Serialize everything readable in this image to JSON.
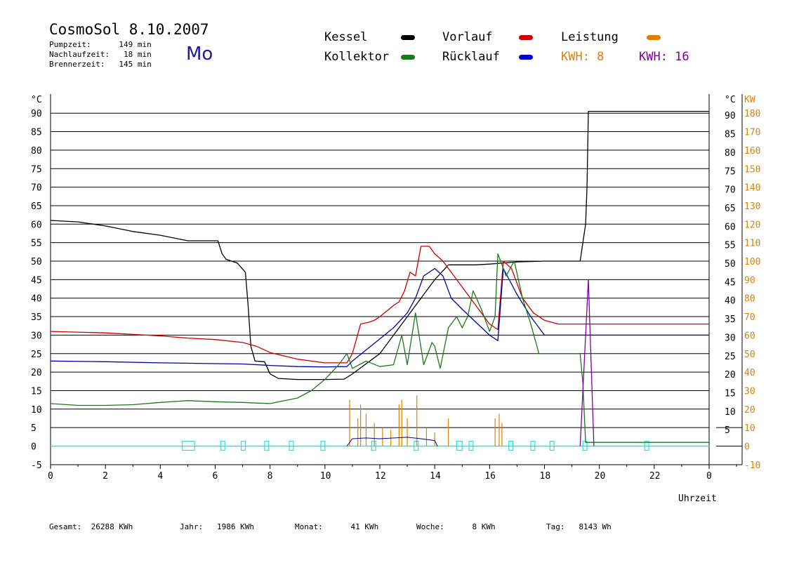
{
  "header": {
    "title": "CosmoSol 8.10.2007",
    "day": "Mo",
    "pumpzeit": "Pumpzeit:      149 min",
    "nachlaufzeit": "Nachlaufzeit:   18 min",
    "brennerzeit": "Brennerzeit:   145 min"
  },
  "legend": {
    "kessel": "Kessel",
    "kollektor": "Kollektor",
    "vorlauf": "Vorlauf",
    "ruecklauf": "Rücklauf",
    "leistung": "Leistung",
    "kwh1": "KWH: 8",
    "kwh2": "KWH: 16"
  },
  "footer": {
    "gesamt": "Gesamt:  26288 KWh",
    "jahr": "Jahr:   1986 KWh",
    "monat": "Monat:      41 KWh",
    "woche": "Woche:      8 KWh",
    "tag": "Tag:   8143 Wh"
  },
  "colors": {
    "kessel": "#000000",
    "kollektor": "#1a7a1a",
    "vorlauf": "#cc0000",
    "ruecklauf": "#0000aa",
    "leistung": "#e08000",
    "kwh16": "#8000a0",
    "pump": "#33dddd",
    "day": "#1a1aa6"
  },
  "chart_data": {
    "type": "line",
    "xlabel": "Uhrzeit",
    "x_ticks": [
      0,
      2,
      4,
      6,
      8,
      10,
      12,
      14,
      16,
      18,
      20,
      22
    ],
    "x_tick_labels": [
      "0",
      "2",
      "4",
      "6",
      "8",
      "10",
      "12",
      "14",
      "16",
      "18",
      "20",
      "22",
      "0"
    ],
    "xlim": [
      0,
      24
    ],
    "ylim": [
      -5,
      95
    ],
    "y_unit_left": "°C",
    "y_unit_right": "°C",
    "y_unit_power": "KW",
    "y_ticks_left": [
      90,
      85,
      80,
      75,
      70,
      65,
      60,
      55,
      50,
      45,
      40,
      35,
      30,
      25,
      20,
      15,
      10,
      5,
      0,
      -5
    ],
    "y_ticks_right": [
      90,
      85,
      80,
      75,
      70,
      65,
      60,
      55,
      50,
      45,
      40,
      35,
      30,
      25,
      20,
      15,
      10,
      5
    ],
    "y_ticks_power": [
      180,
      170,
      160,
      150,
      140,
      130,
      120,
      110,
      100,
      90,
      80,
      70,
      60,
      50,
      40,
      30,
      20,
      10,
      0,
      -10
    ],
    "grid": true,
    "series": [
      {
        "name": "Kessel",
        "color": "#000000",
        "points": [
          [
            0,
            61
          ],
          [
            1,
            60.6
          ],
          [
            2,
            59.5
          ],
          [
            3,
            58
          ],
          [
            4,
            57
          ],
          [
            5,
            55.5
          ],
          [
            6.1,
            55.5
          ],
          [
            6.25,
            52
          ],
          [
            6.4,
            50.5
          ],
          [
            6.8,
            49.5
          ],
          [
            7.1,
            47
          ],
          [
            7.2,
            38
          ],
          [
            7.3,
            27
          ],
          [
            7.45,
            23
          ],
          [
            7.8,
            22.8
          ],
          [
            8,
            19.5
          ],
          [
            8.3,
            18.3
          ],
          [
            9,
            18
          ],
          [
            10,
            18
          ],
          [
            10.7,
            18.1
          ],
          [
            11,
            19.5
          ],
          [
            12,
            25
          ],
          [
            13,
            35
          ],
          [
            14,
            45
          ],
          [
            14.5,
            49
          ],
          [
            15.5,
            49
          ],
          [
            16,
            49.2
          ],
          [
            17,
            49.8
          ],
          [
            18,
            50
          ],
          [
            19.3,
            50
          ],
          [
            19.5,
            60
          ],
          [
            19.55,
            70
          ],
          [
            19.6,
            90.5
          ],
          [
            20,
            90.5
          ],
          [
            24,
            90.5
          ]
        ]
      },
      {
        "name": "Vorlauf",
        "color": "#cc0000",
        "points": [
          [
            0,
            31
          ],
          [
            2,
            30.6
          ],
          [
            4,
            29.8
          ],
          [
            5,
            29.2
          ],
          [
            6,
            28.8
          ],
          [
            7,
            28
          ],
          [
            7.5,
            27
          ],
          [
            8,
            25.3
          ],
          [
            9,
            23.5
          ],
          [
            10,
            22.5
          ],
          [
            10.8,
            22.5
          ],
          [
            11,
            25
          ],
          [
            11.3,
            33
          ],
          [
            11.6,
            33.5
          ],
          [
            11.8,
            34
          ],
          [
            12,
            35
          ],
          [
            12.5,
            38
          ],
          [
            12.7,
            39
          ],
          [
            12.9,
            42
          ],
          [
            13.1,
            47
          ],
          [
            13.3,
            46
          ],
          [
            13.5,
            54
          ],
          [
            13.8,
            54
          ],
          [
            14,
            52
          ],
          [
            14.3,
            50
          ],
          [
            14.6,
            47
          ],
          [
            15,
            43
          ],
          [
            15.5,
            38
          ],
          [
            16,
            33
          ],
          [
            16.3,
            31.5
          ],
          [
            16.5,
            50
          ],
          [
            16.8,
            48
          ],
          [
            17.2,
            40
          ],
          [
            17.6,
            36
          ],
          [
            18,
            34
          ],
          [
            18.5,
            33
          ],
          [
            24,
            33
          ]
        ]
      },
      {
        "name": "Rücklauf",
        "color": "#0000aa",
        "points": [
          [
            0,
            23
          ],
          [
            2,
            22.8
          ],
          [
            4,
            22.5
          ],
          [
            6,
            22.3
          ],
          [
            7,
            22.2
          ],
          [
            8,
            21.8
          ],
          [
            9,
            21.5
          ],
          [
            10,
            21.4
          ],
          [
            10.8,
            21.5
          ],
          [
            11,
            23
          ],
          [
            11.5,
            26
          ],
          [
            12,
            29
          ],
          [
            12.5,
            32
          ],
          [
            13,
            36
          ],
          [
            13.3,
            40
          ],
          [
            13.6,
            46
          ],
          [
            14,
            48
          ],
          [
            14.3,
            46
          ],
          [
            14.6,
            40
          ],
          [
            15,
            37
          ],
          [
            15.5,
            33.5
          ],
          [
            16,
            30
          ],
          [
            16.3,
            28.5
          ],
          [
            16.5,
            48
          ],
          [
            17,
            41
          ],
          [
            17.5,
            35
          ],
          [
            18,
            30
          ],
          [
            24,
            30
          ]
        ]
      },
      {
        "name": "Kollektor",
        "color": "#1a7a1a",
        "points": [
          [
            0,
            11.5
          ],
          [
            1,
            11
          ],
          [
            2,
            11
          ],
          [
            3,
            11.2
          ],
          [
            4,
            11.8
          ],
          [
            5,
            12.3
          ],
          [
            6,
            12
          ],
          [
            7,
            11.8
          ],
          [
            8,
            11.5
          ],
          [
            9,
            13
          ],
          [
            9.5,
            15
          ],
          [
            10,
            18
          ],
          [
            10.5,
            22
          ],
          [
            10.8,
            25
          ],
          [
            11,
            21
          ],
          [
            11.5,
            23
          ],
          [
            12,
            21.5
          ],
          [
            12.5,
            22
          ],
          [
            12.8,
            30
          ],
          [
            13,
            22
          ],
          [
            13.3,
            36
          ],
          [
            13.6,
            22
          ],
          [
            13.9,
            28
          ],
          [
            14,
            27
          ],
          [
            14.2,
            21
          ],
          [
            14.5,
            32
          ],
          [
            14.8,
            35
          ],
          [
            15,
            32
          ],
          [
            15.2,
            35
          ],
          [
            15.4,
            42
          ],
          [
            15.7,
            37
          ],
          [
            16,
            31
          ],
          [
            16.2,
            35
          ],
          [
            16.3,
            52
          ],
          [
            16.6,
            46
          ],
          [
            16.9,
            50
          ],
          [
            17.2,
            40
          ],
          [
            17.5,
            33
          ],
          [
            17.8,
            25
          ],
          [
            18.5,
            25
          ],
          [
            19.3,
            25
          ],
          [
            19.4,
            17
          ],
          [
            19.5,
            1
          ],
          [
            24,
            1
          ]
        ]
      },
      {
        "name": "KWH: 16",
        "color": "#8000a0",
        "points": [
          [
            19.3,
            0
          ],
          [
            19.6,
            45
          ],
          [
            19.8,
            0
          ]
        ]
      }
    ]
  }
}
